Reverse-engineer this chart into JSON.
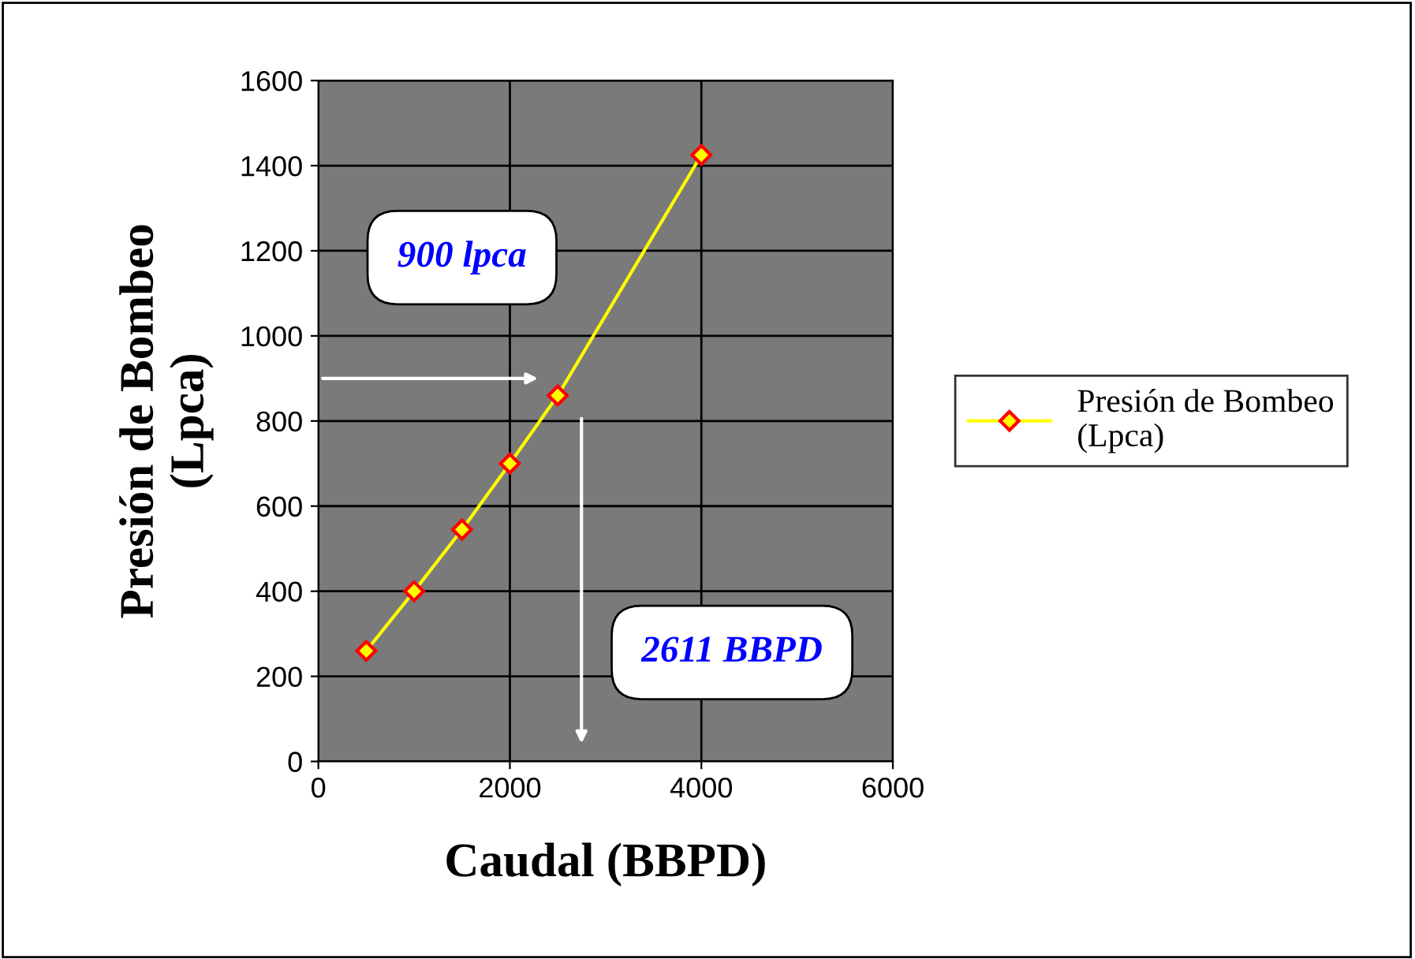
{
  "chart_data": {
    "type": "line",
    "xlabel": "Caudal (BBPD)",
    "ylabel": "Presión de Bombeo\n(Lpca)",
    "x": [
      500,
      1000,
      1500,
      2000,
      2500,
      4000
    ],
    "series": [
      {
        "name": "Presión de Bombeo\n(Lpca)",
        "color": "#ffff00",
        "values": [
          260,
          400,
          545,
          700,
          860,
          1425
        ]
      }
    ],
    "xlim": [
      0,
      6000
    ],
    "xticks": [
      0,
      2000,
      4000,
      6000
    ],
    "ylim": [
      0,
      1600
    ],
    "yticks": [
      0,
      200,
      400,
      600,
      800,
      1000,
      1200,
      1400,
      1600
    ],
    "grid": true,
    "legend": "right",
    "marker": "diamond",
    "line_style": "solid",
    "annotations": [
      "900 lpca",
      "2611 BBPD"
    ]
  }
}
